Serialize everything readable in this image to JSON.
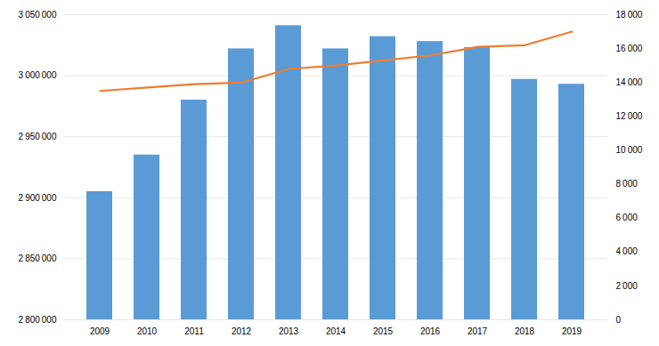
{
  "chart_data": {
    "type": "bar",
    "categories": [
      "2009",
      "2010",
      "2011",
      "2012",
      "2013",
      "2014",
      "2015",
      "2016",
      "2017",
      "2018",
      "2019"
    ],
    "series": [
      {
        "type": "bar",
        "color": "#5B9BD5",
        "values": [
          2905000,
          2935000,
          2980000,
          3022000,
          3041000,
          3022000,
          3032000,
          3028000,
          3023000,
          2997000,
          2993000
        ]
      },
      {
        "type": "line",
        "color": "#ED7D31",
        "axis": "y2",
        "values": [
          13500,
          13700,
          13900,
          14000,
          14800,
          15000,
          15300,
          15600,
          16100,
          16200,
          17000
        ]
      }
    ],
    "ylim": [
      2800000,
      3050000
    ],
    "yticks": [
      {
        "value": 2800000,
        "label": "2 800 000"
      },
      {
        "value": 2850000,
        "label": "2 850 000"
      },
      {
        "value": 2900000,
        "label": "2 900 000"
      },
      {
        "value": 2950000,
        "label": "2 950 000"
      },
      {
        "value": 3000000,
        "label": "3 000 000"
      },
      {
        "value": 3050000,
        "label": "3 050 000"
      }
    ],
    "y2lim": [
      0,
      18000
    ],
    "y2ticks": [
      0,
      {
        "value": 2000,
        "label": "2 000"
      },
      {
        "value": 4000,
        "label": "4 000"
      },
      {
        "value": 6000,
        "label": "6 000"
      },
      {
        "value": 8000,
        "label": "8 000"
      },
      {
        "value": 10000,
        "label": "10 000"
      },
      {
        "value": 12000,
        "label": "12 000"
      },
      {
        "value": 14000,
        "label": "14 000"
      },
      {
        "value": 16000,
        "label": "16 000"
      },
      {
        "value": 18000,
        "label": "18 000"
      }
    ],
    "grid": true
  }
}
